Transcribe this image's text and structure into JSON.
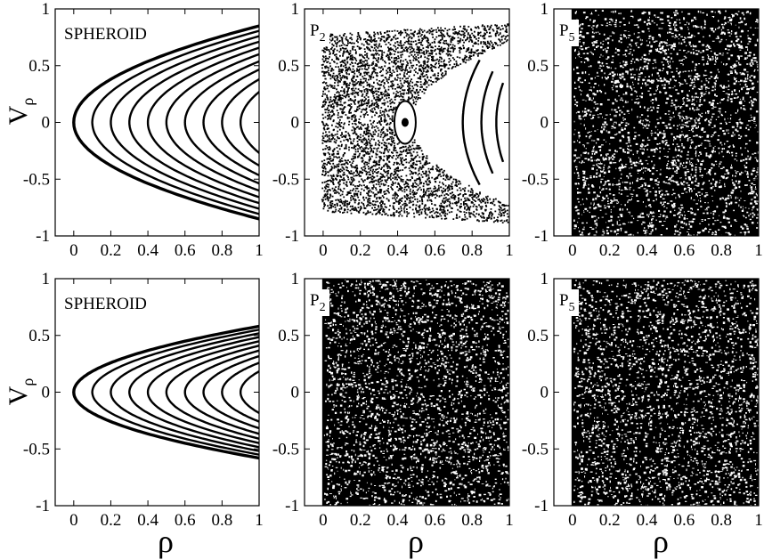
{
  "figure": {
    "ylabel_base": "V",
    "ylabel_sub": "ρ",
    "xlabel": "ρ"
  },
  "chart_data": [
    {
      "panel": "row1-col1",
      "type": "scatter",
      "label": "SPHEROID",
      "label_sub": "",
      "pattern": "spheroid-wide",
      "xlim": [
        -0.1,
        1.0
      ],
      "ylim": [
        -1,
        1
      ],
      "xticks": [
        "0",
        "0.2",
        "0.4",
        "0.6",
        "0.8",
        "1"
      ],
      "yticks": [
        "1",
        "0.5",
        "0",
        "-0.5",
        "-1"
      ],
      "curve_vertices": [
        0.0,
        0.1,
        0.2,
        0.3,
        0.4,
        0.5,
        0.6,
        0.7,
        0.8,
        0.9
      ],
      "envelope_v_at_rho1": 0.85
    },
    {
      "panel": "row1-col2",
      "type": "scatter",
      "label": "P",
      "label_sub": "2",
      "pattern": "mixed",
      "xlim": [
        -0.1,
        1.0
      ],
      "ylim": [
        -1,
        1
      ],
      "xticks": [
        "0",
        "0.2",
        "0.4",
        "0.6",
        "0.8",
        "1"
      ],
      "yticks": [
        "1",
        "0.5",
        "0",
        "-0.5",
        "-1"
      ],
      "regular_curve_vertices": [
        0.75,
        0.85,
        0.93
      ],
      "islands_center": [
        0.44,
        0.0
      ]
    },
    {
      "panel": "row1-col3",
      "type": "scatter",
      "label": "P",
      "label_sub": "5",
      "pattern": "chaotic",
      "xlim": [
        -0.1,
        1.0
      ],
      "ylim": [
        -1,
        1
      ],
      "xticks": [
        "0",
        "0.2",
        "0.4",
        "0.6",
        "0.8",
        "1"
      ],
      "yticks": [
        "1",
        "0.5",
        "0",
        "-0.5",
        "-1"
      ]
    },
    {
      "panel": "row2-col1",
      "type": "scatter",
      "label": "SPHEROID",
      "label_sub": "",
      "pattern": "spheroid-narrow",
      "xlim": [
        -0.1,
        1.0
      ],
      "ylim": [
        -1,
        1
      ],
      "xticks": [
        "0",
        "0.2",
        "0.4",
        "0.6",
        "0.8",
        "1"
      ],
      "yticks": [
        "1",
        "0.5",
        "0",
        "-0.5",
        "-1"
      ],
      "curve_vertices": [
        0.0,
        0.1,
        0.2,
        0.3,
        0.4,
        0.5,
        0.6,
        0.7,
        0.8,
        0.9
      ],
      "envelope_v_at_rho1": 0.58
    },
    {
      "panel": "row2-col2",
      "type": "scatter",
      "label": "P",
      "label_sub": "2",
      "pattern": "chaotic",
      "xlim": [
        -0.1,
        1.0
      ],
      "ylim": [
        -1,
        1
      ],
      "xticks": [
        "0",
        "0.2",
        "0.4",
        "0.6",
        "0.8",
        "1"
      ],
      "yticks": [
        "1",
        "0.5",
        "0",
        "-0.5",
        "-1"
      ]
    },
    {
      "panel": "row2-col3",
      "type": "scatter",
      "label": "P",
      "label_sub": "5",
      "pattern": "chaotic",
      "xlim": [
        -0.1,
        1.0
      ],
      "ylim": [
        -1,
        1
      ],
      "xticks": [
        "0",
        "0.2",
        "0.4",
        "0.6",
        "0.8",
        "1"
      ],
      "yticks": [
        "1",
        "0.5",
        "0",
        "-0.5",
        "-1"
      ]
    }
  ]
}
